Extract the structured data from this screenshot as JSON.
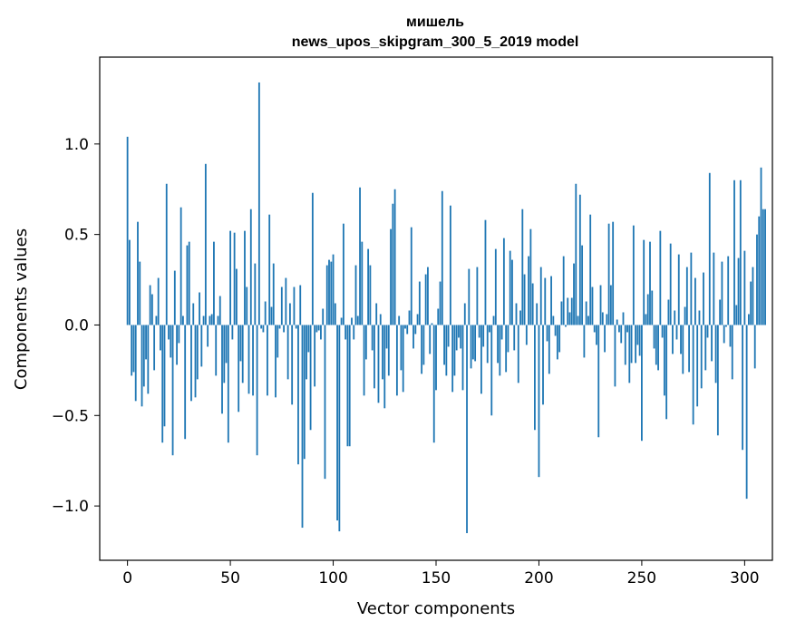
{
  "chart_data": {
    "type": "bar",
    "title": "мишель",
    "subtitle": "news_upos_skipgram_300_5_2019 model",
    "xlabel": "Vector components",
    "ylabel": "Components values",
    "xlim": [
      -13.5,
      313.5
    ],
    "ylim": [
      -1.3,
      1.48
    ],
    "xticks": [
      0,
      50,
      100,
      150,
      200,
      250,
      300
    ],
    "yticks": [
      -1.0,
      -0.5,
      0.0,
      0.5,
      1.0
    ],
    "ytick_labels": [
      "−1.0",
      "−0.5",
      "0.0",
      "0.5",
      "1.0"
    ],
    "bar_color": "#1f77b4",
    "grid": false,
    "legend": "none",
    "values": [
      1.04,
      0.47,
      -0.28,
      -0.26,
      -0.42,
      0.57,
      0.35,
      -0.45,
      -0.34,
      -0.19,
      -0.38,
      0.22,
      0.17,
      -0.25,
      0.05,
      0.26,
      -0.14,
      -0.65,
      -0.56,
      0.78,
      -0.08,
      -0.18,
      -0.72,
      0.3,
      -0.22,
      -0.1,
      0.65,
      0.05,
      -0.63,
      0.44,
      0.46,
      -0.42,
      0.12,
      -0.4,
      -0.3,
      0.18,
      -0.23,
      0.05,
      0.89,
      -0.12,
      0.05,
      0.06,
      0.46,
      -0.28,
      0.05,
      0.16,
      -0.49,
      -0.32,
      -0.21,
      -0.65,
      0.52,
      -0.08,
      0.51,
      0.31,
      -0.48,
      -0.2,
      -0.32,
      0.52,
      0.21,
      -0.38,
      0.64,
      -0.39,
      0.34,
      -0.72,
      1.34,
      -0.02,
      -0.04,
      0.13,
      -0.39,
      0.61,
      0.1,
      0.34,
      -0.4,
      -0.18,
      -0.02,
      0.21,
      -0.04,
      0.26,
      -0.3,
      0.12,
      -0.44,
      0.21,
      -0.02,
      -0.77,
      0.22,
      -1.12,
      -0.74,
      -0.3,
      -0.15,
      -0.58,
      0.73,
      -0.34,
      -0.04,
      -0.03,
      -0.08,
      0.09,
      -0.85,
      0.33,
      0.36,
      0.35,
      0.39,
      0.12,
      -1.08,
      -1.14,
      0.04,
      0.56,
      -0.08,
      -0.67,
      -0.67,
      0.04,
      -0.08,
      0.33,
      0.05,
      0.76,
      0.46,
      -0.39,
      -0.19,
      0.42,
      0.33,
      -0.14,
      -0.35,
      0.12,
      -0.43,
      0.06,
      -0.3,
      -0.46,
      -0.13,
      -0.28,
      0.53,
      0.67,
      0.75,
      -0.39,
      0.05,
      -0.25,
      -0.37,
      -0.02,
      -0.05,
      0.08,
      0.54,
      -0.13,
      -0.05,
      0.06,
      0.24,
      -0.27,
      -0.22,
      0.28,
      0.32,
      -0.16,
      0.01,
      -0.65,
      -0.36,
      0.09,
      0.24,
      0.74,
      -0.22,
      -0.28,
      -0.12,
      0.66,
      -0.37,
      -0.28,
      -0.14,
      -0.07,
      -0.13,
      -0.36,
      0.12,
      -1.15,
      0.31,
      -0.24,
      -0.19,
      -0.2,
      0.32,
      -0.07,
      -0.38,
      -0.12,
      0.58,
      -0.21,
      -0.04,
      -0.5,
      0.05,
      0.42,
      -0.21,
      -0.28,
      -0.08,
      0.48,
      -0.26,
      -0.15,
      0.41,
      0.36,
      -0.14,
      0.12,
      -0.32,
      0.08,
      0.64,
      0.28,
      -0.11,
      0.38,
      0.53,
      0.23,
      -0.58,
      0.12,
      -0.84,
      0.32,
      -0.44,
      0.26,
      -0.09,
      -0.27,
      0.27,
      0.05,
      -0.06,
      -0.19,
      -0.15,
      0.13,
      0.38,
      -0.01,
      0.15,
      0.07,
      0.15,
      0.34,
      0.78,
      0.05,
      0.72,
      0.44,
      -0.18,
      0.13,
      0.05,
      0.61,
      0.21,
      -0.04,
      -0.11,
      -0.62,
      0.22,
      0.07,
      -0.15,
      0.06,
      0.56,
      0.22,
      0.57,
      -0.34,
      0.03,
      -0.04,
      -0.1,
      0.07,
      -0.22,
      -0.04,
      -0.32,
      -0.21,
      0.55,
      -0.21,
      -0.11,
      -0.17,
      -0.64,
      0.47,
      0.06,
      0.17,
      0.46,
      0.19,
      -0.13,
      -0.22,
      -0.25,
      0.52,
      -0.07,
      -0.39,
      -0.52,
      0.14,
      0.45,
      -0.16,
      0.08,
      -0.08,
      0.39,
      -0.16,
      -0.27,
      0.1,
      0.32,
      -0.26,
      0.4,
      -0.55,
      0.26,
      -0.45,
      0.08,
      -0.35,
      0.29,
      -0.25,
      -0.07,
      0.84,
      -0.2,
      0.4,
      -0.32,
      -0.61,
      0.14,
      0.35,
      -0.1,
      -0.01,
      0.38,
      -0.12,
      -0.3,
      0.8,
      0.11,
      0.37,
      0.8,
      -0.69,
      0.41,
      -0.96,
      0.06,
      0.24,
      0.32,
      -0.24,
      0.5,
      0.6,
      0.87,
      0.64,
      0.64
    ]
  }
}
